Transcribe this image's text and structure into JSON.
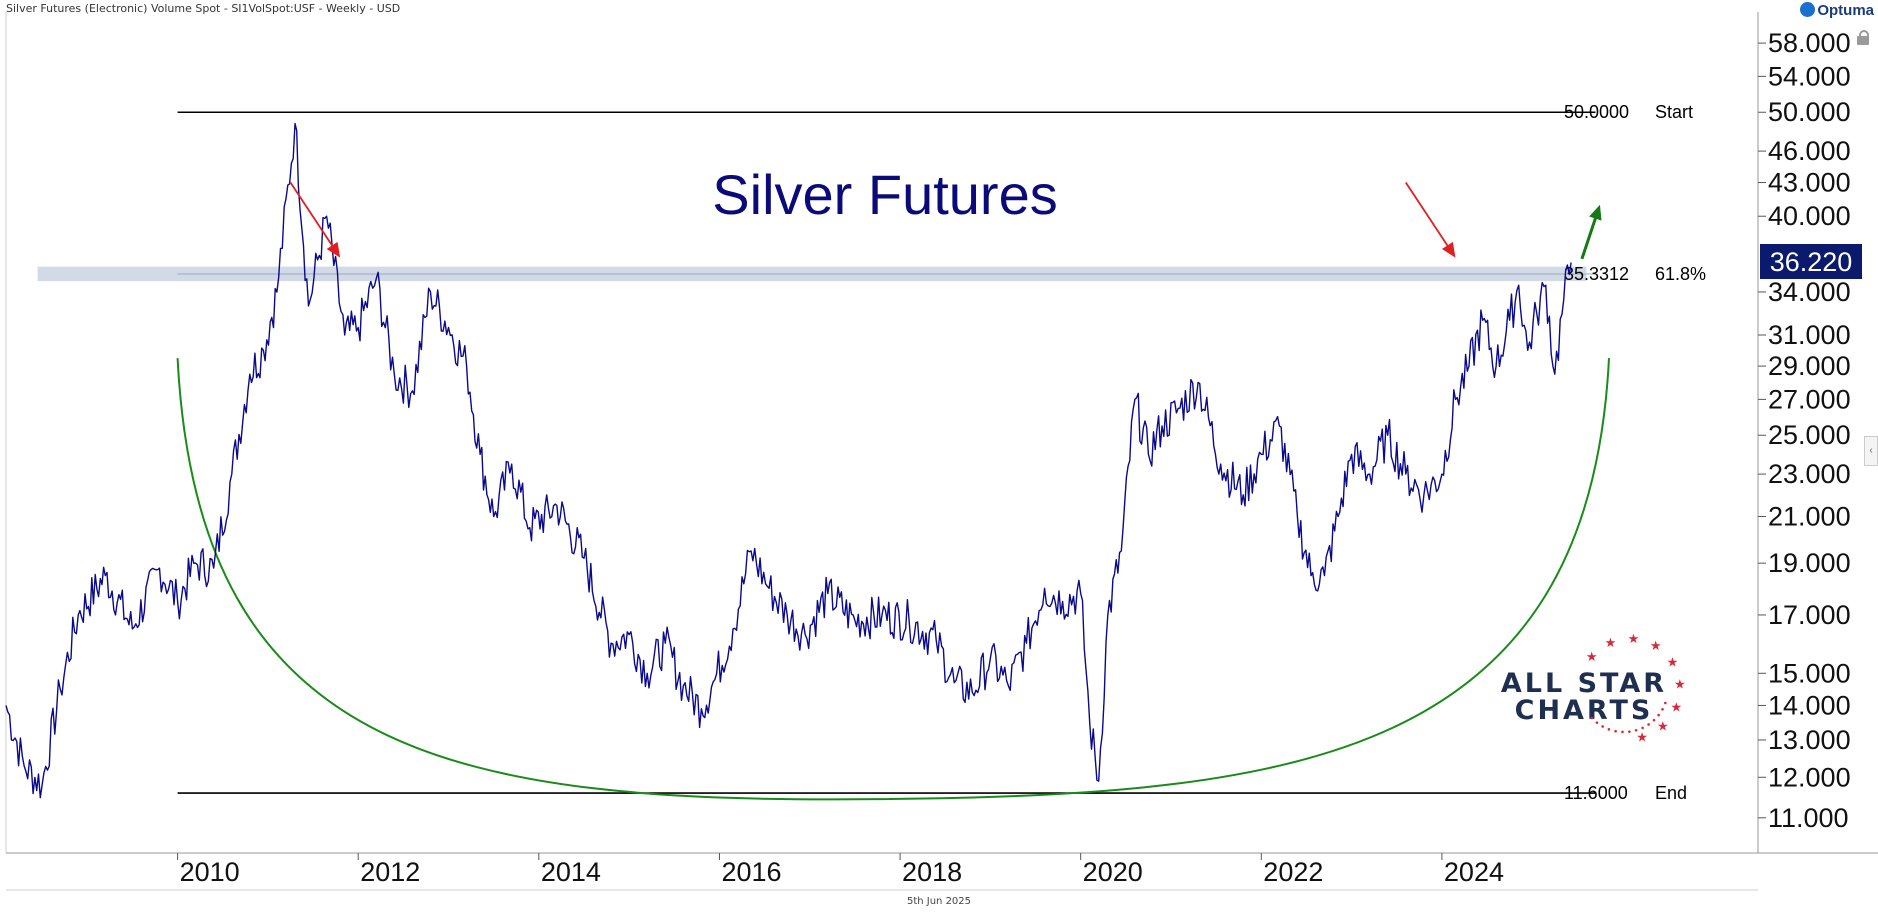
{
  "header": {
    "title": "Silver Futures (Electronic) Volume Spot - SI1VolSpot:USF - Weekly - USD"
  },
  "footer": {
    "date": "5th Jun 2025"
  },
  "branding": {
    "optuma": "Optuma",
    "logo_line1": "ALL STAR",
    "logo_line2": "CHARTS"
  },
  "colors": {
    "price": "#0a0a8a",
    "arc": "#1a8a1a",
    "arrow_red": "#e02020",
    "arrow_green": "#157a15",
    "band": "#c9d4e2",
    "label_bg": "#0c1a6e"
  },
  "chart_data": {
    "type": "line",
    "title": "Silver Futures",
    "xlabel": "",
    "ylabel": "",
    "scale": "log",
    "ylim": [
      10.2,
      62
    ],
    "xlim": [
      2008.1,
      2027.5
    ],
    "x_ticks": [
      "2010",
      "2012",
      "2014",
      "2016",
      "2018",
      "2020",
      "2022",
      "2024"
    ],
    "y_ticks": [
      "58.000",
      "54.000",
      "50.000",
      "46.000",
      "43.000",
      "40.000",
      "34.000",
      "31.000",
      "29.000",
      "27.000",
      "25.000",
      "23.000",
      "21.000",
      "19.000",
      "17.000",
      "15.000",
      "14.000",
      "13.000",
      "12.000",
      "11.000"
    ],
    "last_value_label": "36.220",
    "levels": [
      {
        "value": 50.0,
        "value_label": "50.0000",
        "tag": "Start"
      },
      {
        "value": 35.3312,
        "value_label": "35.3312",
        "tag": "61.8%"
      },
      {
        "value": 11.6,
        "value_label": "11.6000",
        "tag": "End"
      }
    ],
    "series": [
      {
        "x": [
          2008.1,
          2008.3,
          2008.5,
          2008.7,
          2008.9,
          2009.2,
          2009.5,
          2009.8,
          2010.0,
          2010.2,
          2010.4,
          2010.6,
          2010.8,
          2010.95,
          2011.1,
          2011.3,
          2011.45,
          2011.65,
          2011.85,
          2012.0,
          2012.2,
          2012.4,
          2012.6,
          2012.8,
          2013.0,
          2013.2,
          2013.35,
          2013.5,
          2013.7,
          2013.9,
          2014.2,
          2014.5,
          2014.8,
          2015.0,
          2015.2,
          2015.4,
          2015.6,
          2015.8,
          2015.95,
          2016.15,
          2016.35,
          2016.55,
          2016.75,
          2016.95,
          2017.2,
          2017.5,
          2017.8,
          2018.1,
          2018.4,
          2018.6,
          2018.8,
          2019.0,
          2019.2,
          2019.4,
          2019.6,
          2019.8,
          2020.0,
          2020.1,
          2020.2,
          2020.3,
          2020.45,
          2020.6,
          2020.75,
          2020.9,
          2021.1,
          2021.3,
          2021.55,
          2021.8,
          2022.0,
          2022.2,
          2022.4,
          2022.55,
          2022.7,
          2022.85,
          2023.0,
          2023.2,
          2023.4,
          2023.6,
          2023.8,
          2024.0,
          2024.15,
          2024.3,
          2024.45,
          2024.6,
          2024.75,
          2024.85,
          2024.95,
          2025.05,
          2025.15,
          2025.25,
          2025.35,
          2025.43
        ],
        "y": [
          14.0,
          12.3,
          11.8,
          14.5,
          17.0,
          18.5,
          16.5,
          18.8,
          17.5,
          19.0,
          18.8,
          23.0,
          28.5,
          30.0,
          34.0,
          48.8,
          33.0,
          40.0,
          31.0,
          31.5,
          35.0,
          28.5,
          27.5,
          34.0,
          31.5,
          29.0,
          24.0,
          21.0,
          23.5,
          20.5,
          21.5,
          19.2,
          16.0,
          16.3,
          15.0,
          16.0,
          14.6,
          13.9,
          14.8,
          16.5,
          19.5,
          18.0,
          17.0,
          16.3,
          17.8,
          16.8,
          17.0,
          16.8,
          16.1,
          14.7,
          14.4,
          15.5,
          14.6,
          16.0,
          18.0,
          17.5,
          17.8,
          13.5,
          11.9,
          17.0,
          19.5,
          27.0,
          24.0,
          25.5,
          26.5,
          28.0,
          23.5,
          22.0,
          24.0,
          25.5,
          21.0,
          18.5,
          18.5,
          21.0,
          24.0,
          23.0,
          25.0,
          23.0,
          22.0,
          23.0,
          27.0,
          29.0,
          32.0,
          29.0,
          32.0,
          34.5,
          30.0,
          32.5,
          34.5,
          28.5,
          33.5,
          36.22
        ]
      }
    ],
    "arrows": [
      {
        "from": [
          2011.25,
          43.0
        ],
        "to": [
          2011.8,
          36.6
        ],
        "color": "red"
      },
      {
        "from": [
          2023.6,
          43.0
        ],
        "to": [
          2024.15,
          36.6
        ],
        "color": "red"
      },
      {
        "from": [
          2025.55,
          36.5
        ],
        "to": [
          2025.75,
          41.0
        ],
        "color": "green"
      }
    ],
    "arc": {
      "from": [
        2010.0,
        29.5
      ],
      "bottom": [
        2017.75,
        11.45
      ],
      "to": [
        2025.85,
        29.5
      ]
    },
    "band": {
      "low": 34.8,
      "high": 35.9
    }
  }
}
